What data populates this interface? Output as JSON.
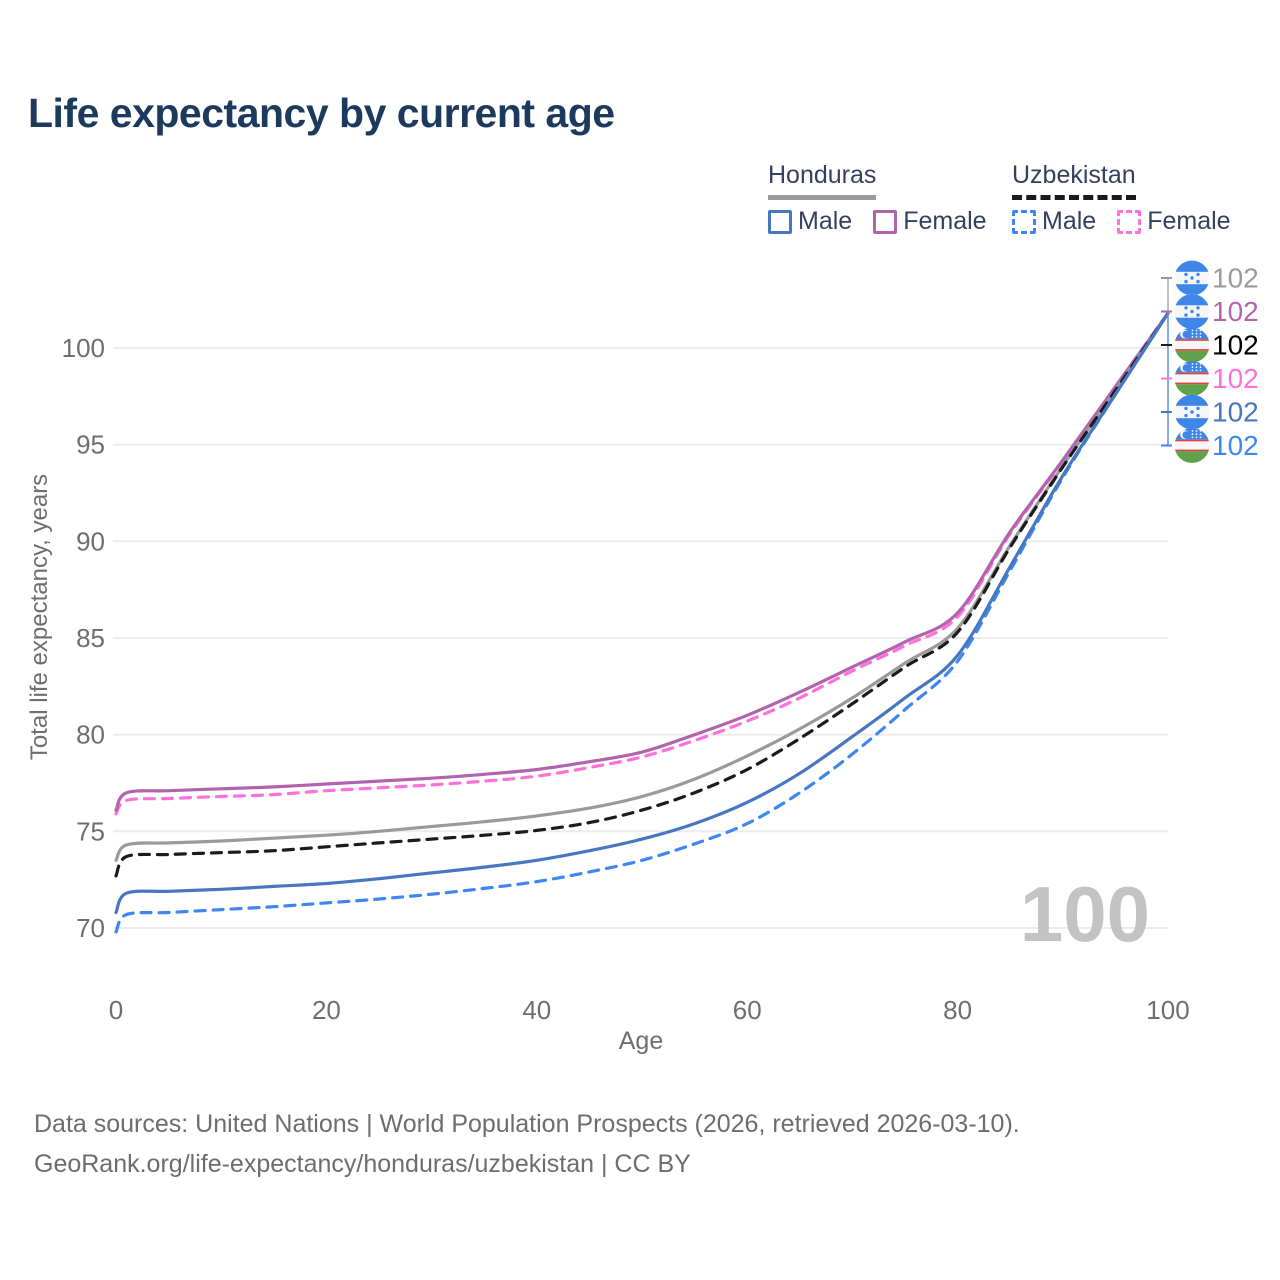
{
  "title": "Life expectancy by current age",
  "watermark_age": "100",
  "legend": {
    "groups": [
      {
        "id": "honduras",
        "label": "Honduras",
        "line_style": "solid",
        "line_color": "#9a9a9a",
        "items": [
          {
            "id": "honduras-male",
            "label": "Male",
            "color": "#4677c0",
            "style": "solid"
          },
          {
            "id": "honduras-female",
            "label": "Female",
            "color": "#b164ad",
            "style": "solid"
          }
        ]
      },
      {
        "id": "uzbekistan",
        "label": "Uzbekistan",
        "line_style": "dashed",
        "line_color": "#1b1b1b",
        "items": [
          {
            "id": "uzbekistan-male",
            "label": "Male",
            "color": "#3e86f5",
            "style": "dashed"
          },
          {
            "id": "uzbekistan-female",
            "label": "Female",
            "color": "#ff70d8",
            "style": "dashed"
          }
        ]
      }
    ]
  },
  "chart_data": {
    "type": "line",
    "title": "Life expectancy by current age",
    "xlabel": "Age",
    "ylabel": "Total life expectancy, years",
    "xlim": [
      0,
      100
    ],
    "ylim": [
      68.5,
      103
    ],
    "x_ticks": [
      0,
      20,
      40,
      60,
      80,
      100
    ],
    "y_ticks": [
      70,
      75,
      80,
      85,
      90,
      95,
      100
    ],
    "grid": "horizontal",
    "legend_position": "top-right",
    "x": [
      0,
      1,
      5,
      10,
      15,
      20,
      25,
      30,
      35,
      40,
      45,
      50,
      55,
      60,
      65,
      70,
      75,
      80,
      85,
      90,
      95,
      100
    ],
    "series": [
      {
        "name": "Honduras — All",
        "country": "Honduras",
        "sex": "All",
        "color": "#9a9a9a",
        "dash": "solid",
        "flag": "honduras",
        "end_label": "102",
        "end_label_color": "#9a9a9a",
        "values": [
          73.5,
          74.3,
          74.4,
          74.5,
          74.65,
          74.8,
          75.0,
          75.25,
          75.5,
          75.8,
          76.2,
          76.8,
          77.7,
          78.9,
          80.3,
          81.9,
          83.7,
          85.5,
          89.8,
          93.9,
          97.8,
          101.8
        ]
      },
      {
        "name": "Honduras — Female",
        "country": "Honduras",
        "sex": "Female",
        "color": "#b164ad",
        "dash": "solid",
        "flag": "honduras",
        "end_label": "102",
        "end_label_color": "#b164ad",
        "values": [
          76.1,
          77.0,
          77.1,
          77.2,
          77.3,
          77.45,
          77.6,
          77.75,
          77.95,
          78.2,
          78.6,
          79.1,
          80.0,
          81.0,
          82.2,
          83.5,
          84.8,
          86.3,
          90.5,
          94.2,
          98.0,
          101.8
        ]
      },
      {
        "name": "Uzbekistan — All",
        "country": "Uzbekistan",
        "sex": "All",
        "color": "#1b1b1b",
        "dash": "dashed",
        "flag": "uzbekistan",
        "end_label": "102",
        "end_label_color": "#000000",
        "values": [
          72.7,
          73.7,
          73.8,
          73.9,
          74.0,
          74.2,
          74.4,
          74.6,
          74.8,
          75.05,
          75.45,
          76.1,
          77.0,
          78.2,
          79.8,
          81.6,
          83.5,
          85.3,
          89.7,
          93.85,
          97.8,
          101.8
        ]
      },
      {
        "name": "Uzbekistan — Female",
        "country": "Uzbekistan",
        "sex": "Female",
        "color": "#ff70d8",
        "dash": "dashed",
        "flag": "uzbekistan",
        "end_label": "102",
        "end_label_color": "#ff70d8",
        "values": [
          75.9,
          76.6,
          76.7,
          76.8,
          76.9,
          77.1,
          77.25,
          77.4,
          77.6,
          77.85,
          78.3,
          78.85,
          79.7,
          80.7,
          81.9,
          83.3,
          84.6,
          86.1,
          90.4,
          94.15,
          98.0,
          101.8
        ]
      },
      {
        "name": "Honduras — Male",
        "country": "Honduras",
        "sex": "Male",
        "color": "#4677c0",
        "dash": "solid",
        "flag": "honduras",
        "end_label": "102",
        "end_label_color": "#4677c0",
        "values": [
          70.8,
          71.8,
          71.9,
          72.0,
          72.15,
          72.3,
          72.55,
          72.85,
          73.15,
          73.5,
          74.0,
          74.6,
          75.4,
          76.5,
          78.0,
          79.9,
          81.9,
          84.1,
          88.7,
          93.4,
          97.6,
          101.8
        ]
      },
      {
        "name": "Uzbekistan — Male",
        "country": "Uzbekistan",
        "sex": "Male",
        "color": "#3e86f5",
        "dash": "dashed",
        "flag": "uzbekistan",
        "end_label": "102",
        "end_label_color": "#3e86f5",
        "values": [
          69.8,
          70.7,
          70.8,
          70.95,
          71.1,
          71.3,
          71.5,
          71.75,
          72.05,
          72.4,
          72.9,
          73.5,
          74.35,
          75.4,
          77.0,
          79.0,
          81.3,
          83.8,
          88.5,
          93.3,
          97.6,
          101.8
        ]
      }
    ],
    "draw_order": [
      3,
      1,
      0,
      2,
      5,
      4
    ],
    "flag_colors": {
      "blue": "#3f86e8",
      "green": "#5ea24c",
      "red": "#e0403a",
      "white": "#f4f6f8"
    }
  },
  "footer": {
    "line1": "Data sources: United Nations | World Population Prospects (2026, retrieved 2026-03-10).",
    "line2": "GeoRank.org/life-expectancy/honduras/uzbekistan | CC BY"
  }
}
